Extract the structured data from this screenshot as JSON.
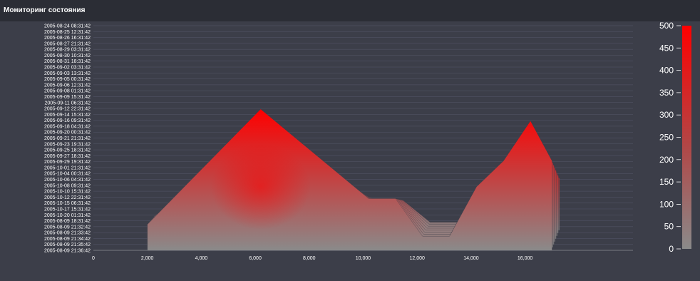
{
  "header": {
    "title": "Мониторинг состояния"
  },
  "colors": {
    "background": "#3c3e49",
    "header_background": "#2b2d35",
    "low": "#8a8a8a",
    "high": "#ff0000",
    "axis_text": "#ffffff"
  },
  "chart_data": {
    "type": "area",
    "subtype": "stacked-3d-surface",
    "xlim": [
      0,
      20000
    ],
    "x_ticks": [
      "0",
      "2,000",
      "4,000",
      "6,000",
      "8,000",
      "10,000",
      "12,000",
      "14,000",
      "16,000"
    ],
    "x_tick_values": [
      0,
      2000,
      4000,
      6000,
      8000,
      10000,
      12000,
      14000,
      16000
    ],
    "y_categories": [
      "2005-08-24 08:31:42",
      "2005-08-25 12:31:42",
      "2005-08-26 16:31:42",
      "2005-08-27 21:31:42",
      "2005-08-29 03:31:42",
      "2005-08-30 10:31:42",
      "2005-08-31 18:31:42",
      "2005-09-02 03:31:42",
      "2005-09-03 13:31:42",
      "2005-09-05 00:31:42",
      "2005-09-06 12:31:42",
      "2005-09-08 01:31:42",
      "2005-09-09 15:31:42",
      "2005-09-11 06:31:42",
      "2005-09-12 22:31:42",
      "2005-09-14 15:31:42",
      "2005-09-16 09:31:42",
      "2005-09-18 04:31:42",
      "2005-09-20 00:31:42",
      "2005-09-21 21:31:42",
      "2005-09-23 19:31:42",
      "2005-09-25 18:31:42",
      "2005-09-27 18:31:42",
      "2005-09-29 19:31:42",
      "2005-10-01 21:31:42",
      "2005-10-04 00:31:42",
      "2005-10-06 04:31:42",
      "2005-10-08 09:31:42",
      "2005-10-10 15:31:42",
      "2005-10-12 22:31:42",
      "2005-10-15 06:31:42",
      "2005-10-17 15:31:42",
      "2005-10-20 01:31:42",
      "2005-08-09 18:31:42",
      "2005-08-09 21:32:42",
      "2005-08-09 21:33:42",
      "2005-08-09 21:34:42",
      "2005-08-09 21:35:42",
      "2005-08-09 21:36:42"
    ],
    "profile_x": [
      2000,
      6200,
      10200,
      11200,
      12200,
      13200,
      14200,
      15200,
      16200,
      17000
    ],
    "profile_values": [
      55,
      300,
      110,
      110,
      30,
      30,
      135,
      190,
      275,
      190
    ],
    "colorbar": {
      "ticks": [
        "0",
        "50",
        "100",
        "150",
        "200",
        "250",
        "300",
        "350",
        "400",
        "450",
        "500"
      ],
      "tick_values": [
        0,
        50,
        100,
        150,
        200,
        250,
        300,
        350,
        400,
        450,
        500
      ],
      "range": [
        0,
        500
      ]
    }
  }
}
